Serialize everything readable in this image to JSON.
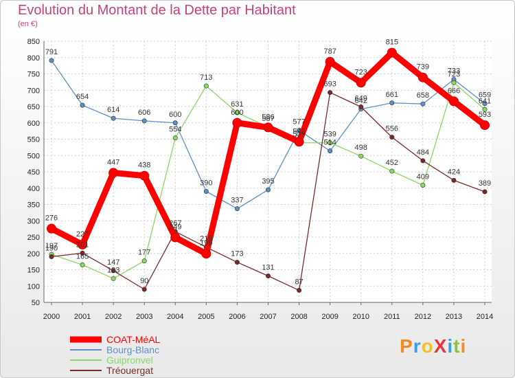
{
  "title": "Evolution du Montant de la Dette par Habitant",
  "subtitle": "(en €)",
  "logo": "ProXiti",
  "chart_data": {
    "type": "line",
    "title": "Evolution du Montant de la Dette par Habitant",
    "ylabel": "(en €)",
    "xlabel": "",
    "ylim": [
      50,
      850
    ],
    "yticks": [
      50,
      100,
      150,
      200,
      250,
      300,
      350,
      400,
      450,
      500,
      550,
      600,
      650,
      700,
      750,
      800,
      850
    ],
    "x": [
      "2000",
      "2001",
      "2002",
      "2003",
      "2004",
      "2005",
      "2006",
      "2007",
      "2008",
      "2009",
      "2010",
      "2011",
      "2012",
      "2013",
      "2014"
    ],
    "grid": true,
    "legend": "bottom-left",
    "series": [
      {
        "name": "COAT-MéAL",
        "color": "#ff0000",
        "values": [
          276,
          227,
          447,
          438,
          249,
          199,
          600,
          586,
          542,
          787,
          723,
          815,
          739,
          666,
          593
        ]
      },
      {
        "name": "Bourg-Blanc",
        "color": "#5b8fc7",
        "values": [
          791,
          654,
          614,
          606,
          600,
          390,
          337,
          395,
          577,
          514,
          642,
          661,
          658,
          733,
          659
        ]
      },
      {
        "name": "Guipronvel",
        "color": "#88d861",
        "values": [
          197,
          165,
          123,
          177,
          554,
          713,
          631,
          587,
          539,
          539,
          498,
          452,
          409,
          723,
          641
        ]
      },
      {
        "name": "Tréouergat",
        "color": "#7a2828",
        "values": [
          190,
          201,
          147,
          90,
          267,
          219,
          173,
          131,
          87,
          693,
          649,
          556,
          484,
          424,
          389
        ]
      }
    ]
  }
}
